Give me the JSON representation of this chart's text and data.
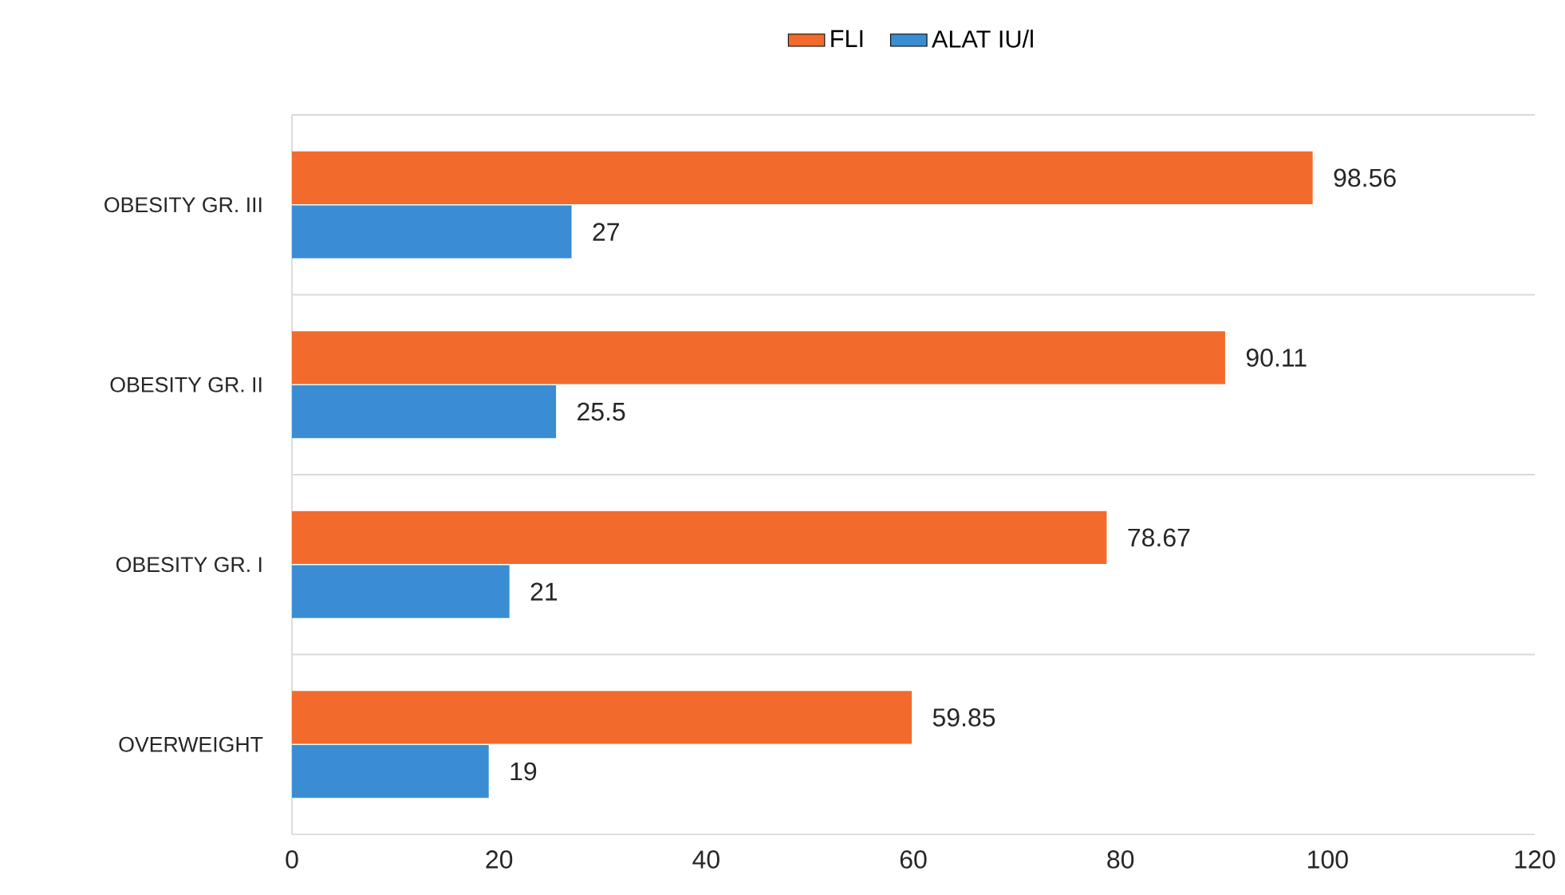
{
  "chart_data": {
    "type": "bar",
    "orientation": "horizontal",
    "categories": [
      "OBESITY GR. III",
      "OBESITY GR. II",
      "OBESITY GR. I",
      "OVERWEIGHT"
    ],
    "series": [
      {
        "name": "FLI",
        "color": "#f26b2c",
        "values": [
          98.56,
          90.11,
          78.67,
          59.85
        ]
      },
      {
        "name": "ALAT IU/l",
        "color": "#3a8dd3",
        "values": [
          27,
          25.5,
          21,
          19
        ]
      }
    ],
    "xlim": [
      0,
      120
    ],
    "xticks": [
      0,
      20,
      40,
      60,
      80,
      100,
      120
    ],
    "data_labels": true,
    "grid": "y",
    "legend": "top"
  }
}
